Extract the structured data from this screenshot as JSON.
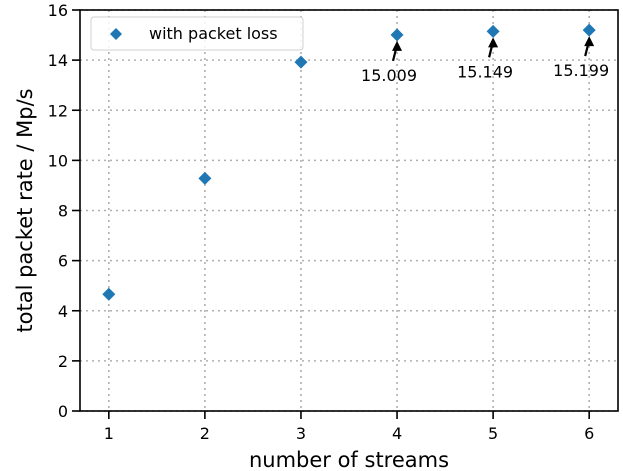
{
  "chart_data": {
    "type": "scatter",
    "title": "",
    "xlabel": "number of streams",
    "ylabel": "total packet rate / Mp/s",
    "xlim": [
      0.7,
      6.3
    ],
    "ylim": [
      0,
      16
    ],
    "xticks": [
      1,
      2,
      3,
      4,
      5,
      6
    ],
    "yticks": [
      0,
      2,
      4,
      6,
      8,
      10,
      12,
      14,
      16
    ],
    "grid": true,
    "legend_position": "top-left",
    "series": [
      {
        "name": "with packet loss",
        "color": "#1f77b4",
        "marker": "diamond",
        "x": [
          1,
          2,
          3,
          4,
          5,
          6
        ],
        "y": [
          4.66,
          9.28,
          13.92,
          15.009,
          15.149,
          15.199
        ]
      }
    ],
    "annotations": [
      {
        "x": 4,
        "y": 15.009,
        "text": "15.009"
      },
      {
        "x": 5,
        "y": 15.149,
        "text": "15.149"
      },
      {
        "x": 6,
        "y": 15.199,
        "text": "15.199"
      }
    ]
  }
}
